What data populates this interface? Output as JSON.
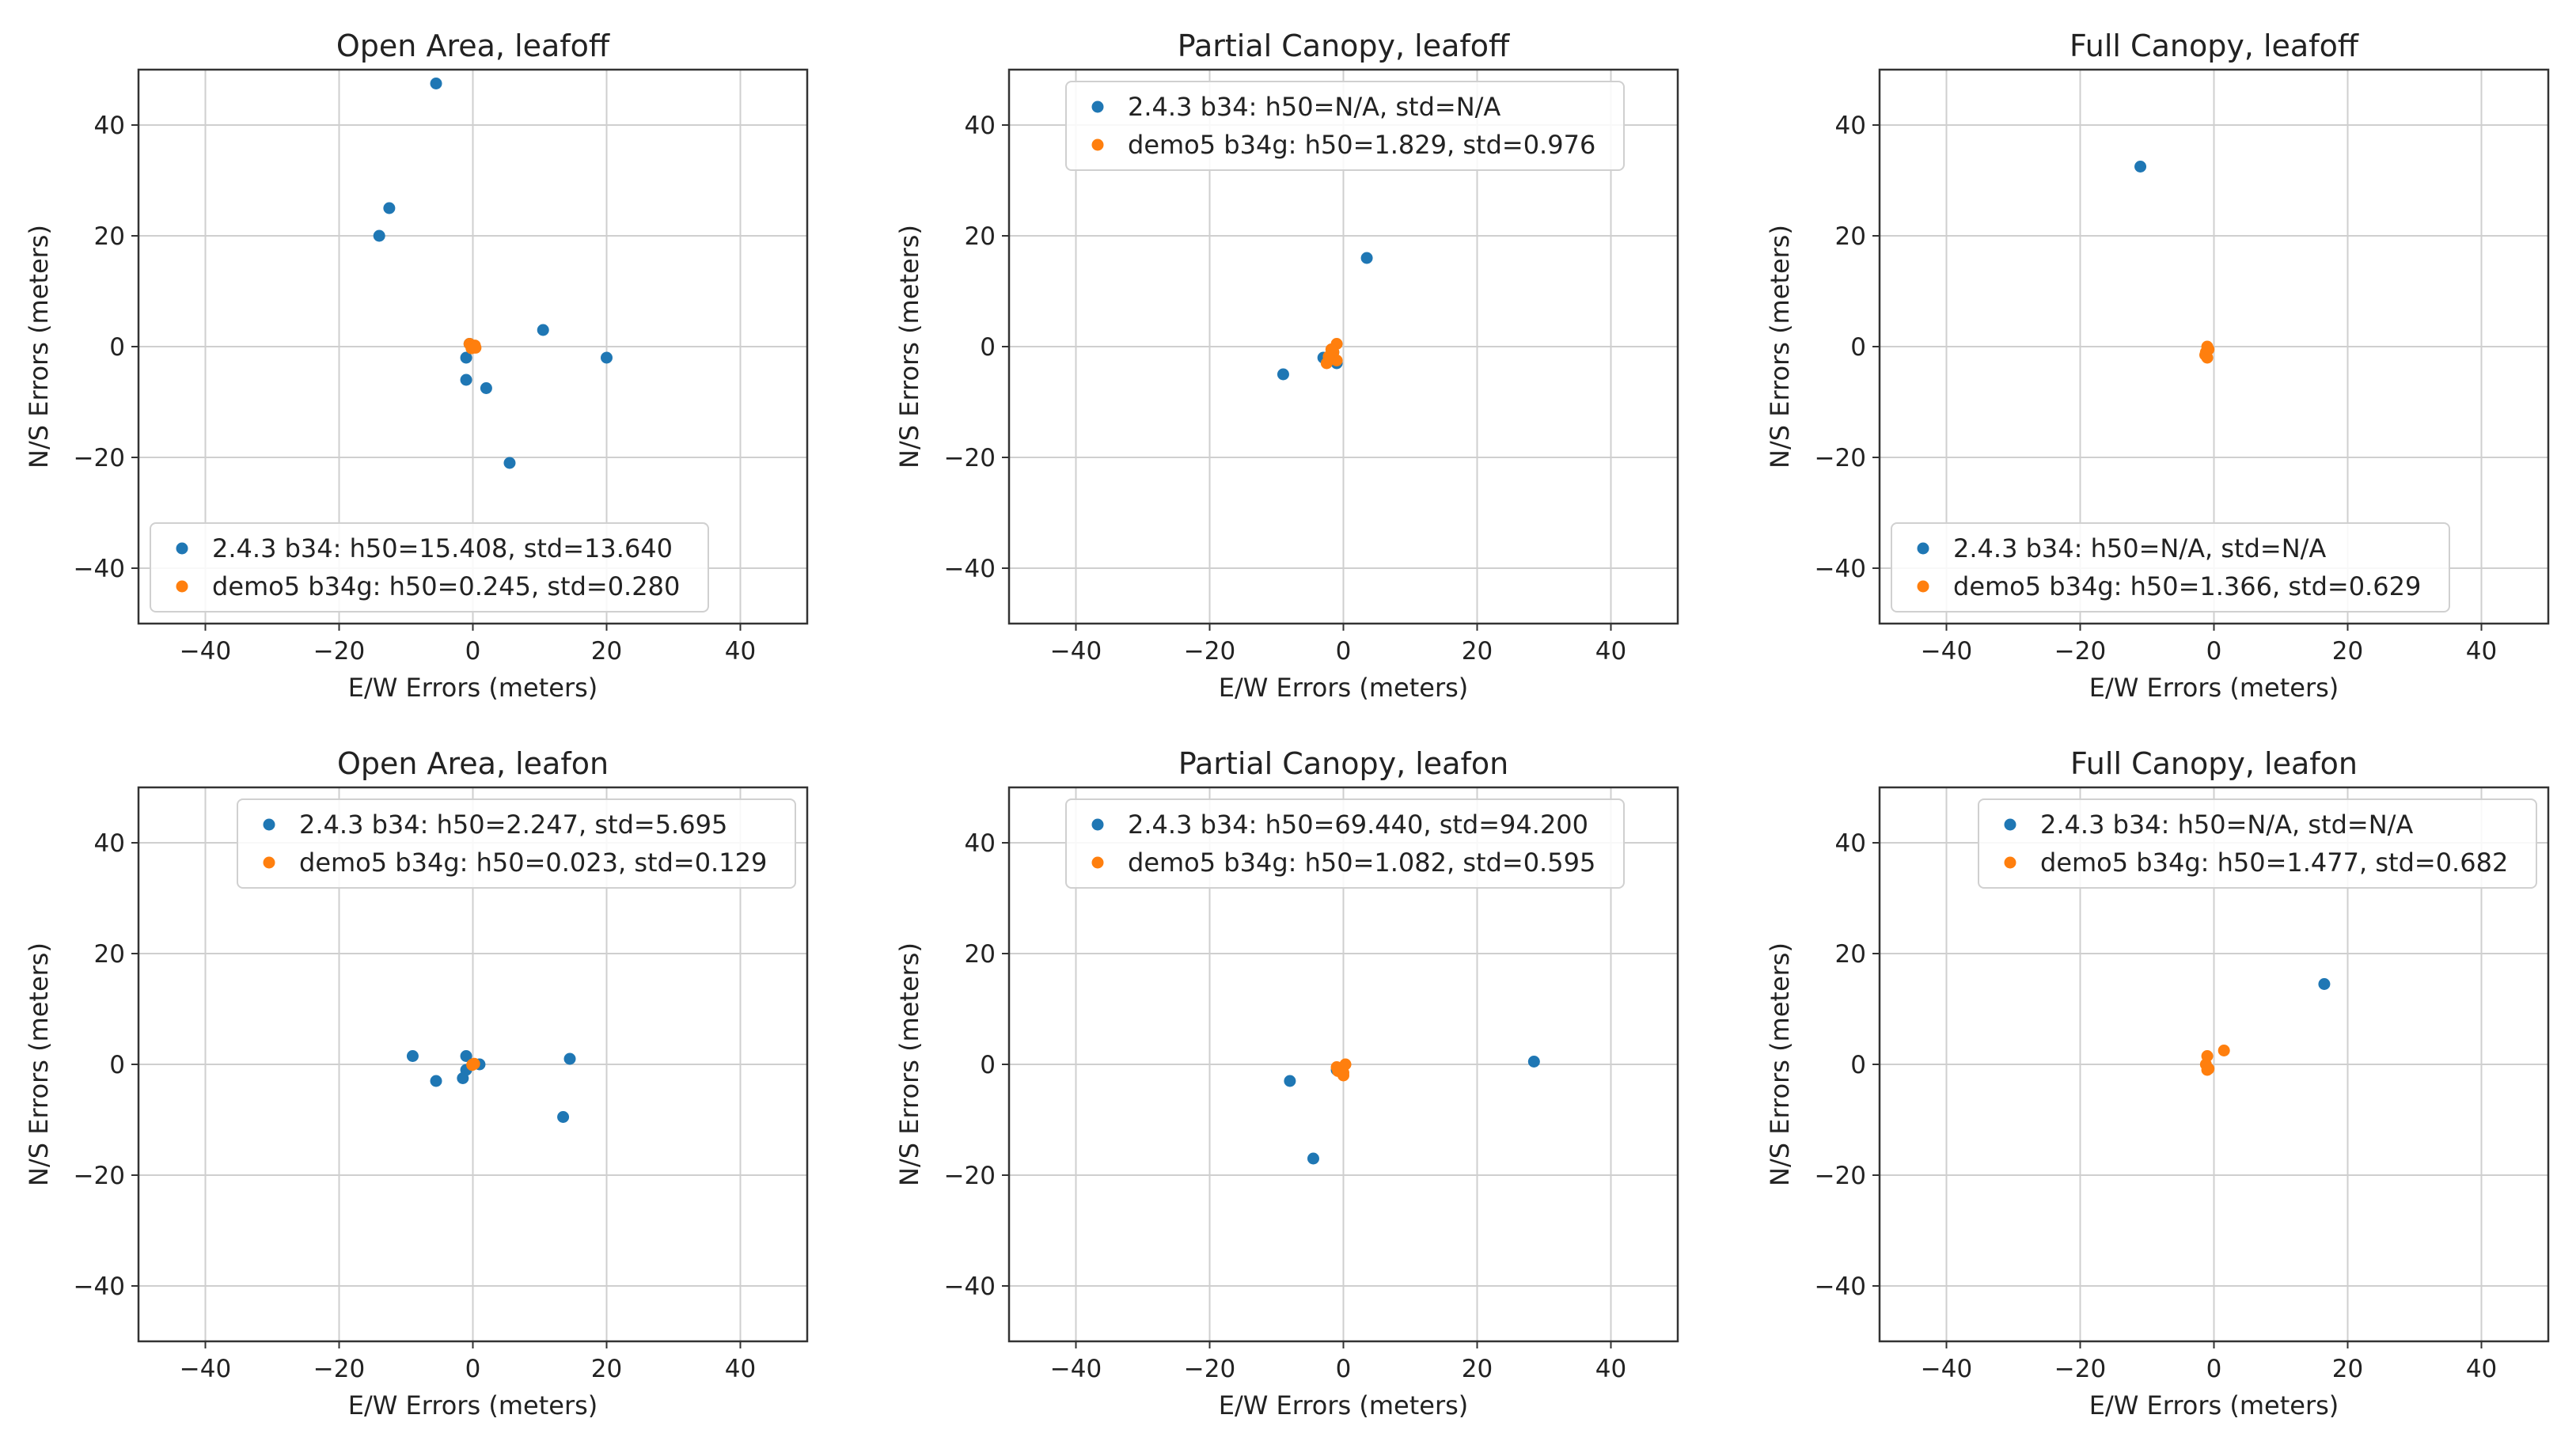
{
  "colors": {
    "series1": "#1f77b4",
    "series2": "#ff7f0e",
    "grid": "#cfcfcf",
    "frame": "#333333"
  },
  "chart_data": [
    {
      "type": "scatter",
      "title": "Open Area, leafoff",
      "xlabel": "E/W Errors (meters)",
      "ylabel": "N/S Errors (meters)",
      "xlim": [
        -50,
        50
      ],
      "ylim": [
        -50,
        50
      ],
      "xticks": [
        "−40",
        "−20",
        "0",
        "20",
        "40"
      ],
      "yticks": [
        "40",
        "20",
        "0",
        "−20",
        "−40"
      ],
      "grid": true,
      "legend_loc": "lower-left",
      "series": [
        {
          "name": "2.4.3 b34: h50=15.408, std=13.640",
          "points": [
            [
              -5.5,
              47.5
            ],
            [
              -12.5,
              25
            ],
            [
              -14,
              20
            ],
            [
              10.5,
              3
            ],
            [
              20,
              -2
            ],
            [
              -1,
              -2
            ],
            [
              -1,
              -6
            ],
            [
              2,
              -7.5
            ],
            [
              5.5,
              -21
            ],
            [
              -0.5,
              0.5
            ]
          ]
        },
        {
          "name": "demo5 b34g: h50=0.245, std=0.280",
          "points": [
            [
              -0.5,
              0.5
            ],
            [
              0,
              0
            ],
            [
              0.3,
              0.2
            ],
            [
              -0.2,
              -0.3
            ],
            [
              0.4,
              -0.2
            ]
          ]
        }
      ]
    },
    {
      "type": "scatter",
      "title": "Partial Canopy, leafoff",
      "xlabel": "E/W Errors (meters)",
      "ylabel": "N/S Errors (meters)",
      "xlim": [
        -50,
        50
      ],
      "ylim": [
        -50,
        50
      ],
      "xticks": [
        "−40",
        "−20",
        "0",
        "20",
        "40"
      ],
      "yticks": [
        "40",
        "20",
        "0",
        "−20",
        "−40"
      ],
      "grid": true,
      "legend_loc": "upper-center",
      "series": [
        {
          "name": "2.4.3 b34: h50=N/A, std=N/A",
          "points": [
            [
              3.5,
              16
            ],
            [
              -9,
              -5
            ],
            [
              -3,
              -2
            ],
            [
              -1,
              -3
            ],
            [
              -1.5,
              -1
            ]
          ]
        },
        {
          "name": "demo5 b34g: h50=1.829, std=0.976",
          "points": [
            [
              -1,
              0.5
            ],
            [
              -1.5,
              -1
            ],
            [
              -2,
              -2
            ],
            [
              -2.5,
              -3
            ],
            [
              -1,
              -2.5
            ],
            [
              -1.8,
              -0.5
            ],
            [
              -2.2,
              -1.8
            ]
          ]
        }
      ]
    },
    {
      "type": "scatter",
      "title": "Full Canopy, leafoff",
      "xlabel": "E/W Errors (meters)",
      "ylabel": "N/S Errors (meters)",
      "xlim": [
        -50,
        50
      ],
      "ylim": [
        -50,
        50
      ],
      "xticks": [
        "−40",
        "−20",
        "0",
        "20",
        "40"
      ],
      "yticks": [
        "40",
        "20",
        "0",
        "−20",
        "−40"
      ],
      "grid": true,
      "legend_loc": "lower-left",
      "series": [
        {
          "name": "2.4.3 b34: h50=N/A, std=N/A",
          "points": [
            [
              -11,
              32.5
            ]
          ]
        },
        {
          "name": "demo5 b34g: h50=1.366, std=0.629",
          "points": [
            [
              -1,
              0
            ],
            [
              -1.2,
              -1
            ],
            [
              -1,
              -2
            ],
            [
              -1.3,
              -1.5
            ],
            [
              -0.8,
              -0.5
            ]
          ]
        }
      ]
    },
    {
      "type": "scatter",
      "title": "Open Area, leafon",
      "xlabel": "E/W Errors (meters)",
      "ylabel": "N/S Errors (meters)",
      "xlim": [
        -50,
        50
      ],
      "ylim": [
        -50,
        50
      ],
      "xticks": [
        "−40",
        "−20",
        "0",
        "20",
        "40"
      ],
      "yticks": [
        "40",
        "20",
        "0",
        "−20",
        "−40"
      ],
      "grid": true,
      "legend_loc": "upper-right",
      "series": [
        {
          "name": "2.4.3 b34: h50=2.247, std=5.695",
          "points": [
            [
              -9,
              1.5
            ],
            [
              -5.5,
              -3
            ],
            [
              -1,
              1.5
            ],
            [
              -1.5,
              -2.5
            ],
            [
              -1,
              -1
            ],
            [
              14.5,
              1
            ],
            [
              13.5,
              -9.5
            ],
            [
              1,
              0
            ]
          ]
        },
        {
          "name": "demo5 b34g: h50=0.023, std=0.129",
          "points": [
            [
              0,
              0
            ],
            [
              0.2,
              0.1
            ],
            [
              -0.1,
              -0.1
            ]
          ]
        }
      ]
    },
    {
      "type": "scatter",
      "title": "Partial Canopy, leafon",
      "xlabel": "E/W Errors (meters)",
      "ylabel": "N/S Errors (meters)",
      "xlim": [
        -50,
        50
      ],
      "ylim": [
        -50,
        50
      ],
      "xticks": [
        "−40",
        "−20",
        "0",
        "20",
        "40"
      ],
      "yticks": [
        "40",
        "20",
        "0",
        "−20",
        "−40"
      ],
      "grid": true,
      "legend_loc": "upper-center",
      "series": [
        {
          "name": "2.4.3 b34: h50=69.440, std=94.200",
          "points": [
            [
              28.5,
              0.5
            ],
            [
              -8,
              -3
            ],
            [
              -4.5,
              -17
            ],
            [
              -1,
              -1
            ]
          ]
        },
        {
          "name": "demo5 b34g: h50=1.082, std=0.595",
          "points": [
            [
              -0.5,
              -1
            ],
            [
              0,
              -1.5
            ],
            [
              -1,
              -0.5
            ],
            [
              0.3,
              0
            ],
            [
              -0.8,
              -1.2
            ],
            [
              0,
              -2
            ]
          ]
        }
      ]
    },
    {
      "type": "scatter",
      "title": "Full Canopy, leafon",
      "xlabel": "E/W Errors (meters)",
      "ylabel": "N/S Errors (meters)",
      "xlim": [
        -50,
        50
      ],
      "ylim": [
        -50,
        50
      ],
      "xticks": [
        "−40",
        "−20",
        "0",
        "20",
        "40"
      ],
      "yticks": [
        "40",
        "20",
        "0",
        "−20",
        "−40"
      ],
      "grid": true,
      "legend_loc": "upper-right",
      "series": [
        {
          "name": "2.4.3 b34: h50=N/A, std=N/A",
          "points": [
            [
              16.5,
              14.5
            ]
          ]
        },
        {
          "name": "demo5 b34g: h50=1.477, std=0.682",
          "points": [
            [
              -1,
              1.5
            ],
            [
              1.5,
              2.5
            ],
            [
              -1,
              -1
            ],
            [
              -1.2,
              0
            ],
            [
              -0.8,
              -0.8
            ]
          ]
        }
      ]
    }
  ]
}
